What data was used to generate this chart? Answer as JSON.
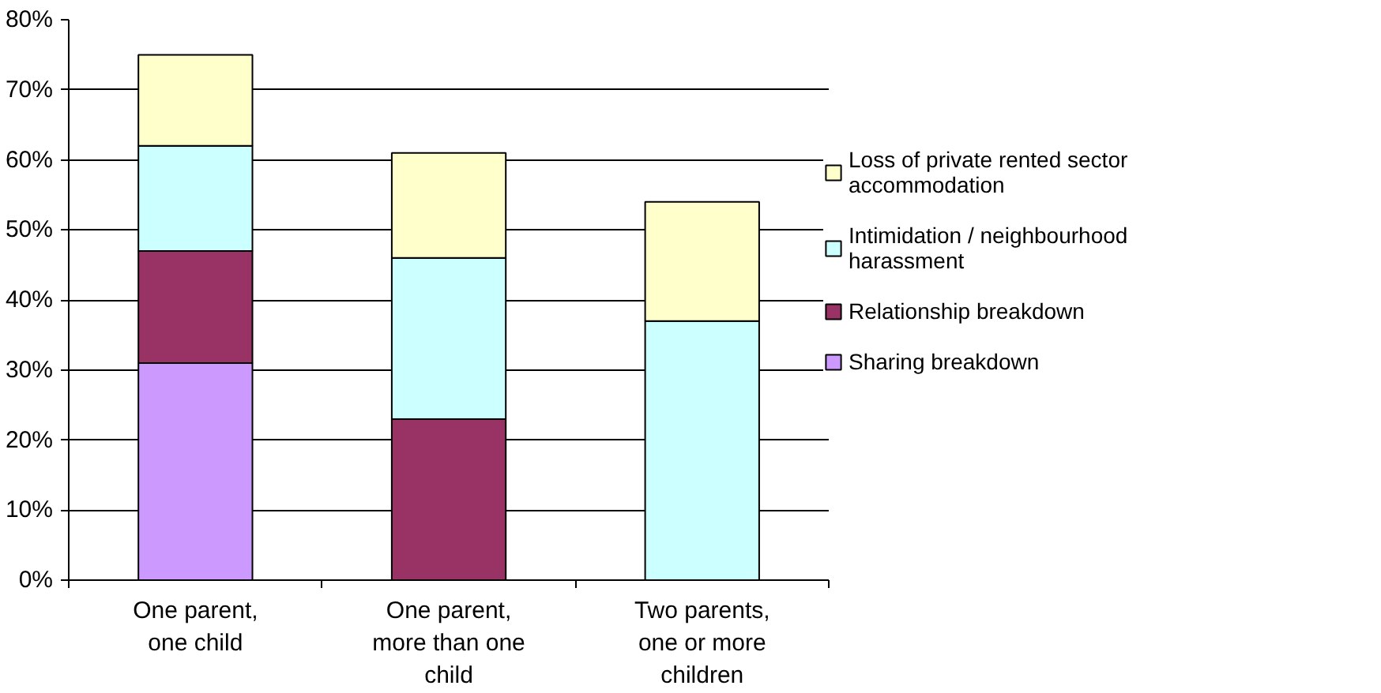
{
  "chart_data": {
    "type": "bar",
    "stacked": true,
    "categories": [
      "One parent, one child",
      "One parent, more than one child",
      "Two parents, one or more children"
    ],
    "series": [
      {
        "name": "Sharing breakdown",
        "color": "#cc99ff",
        "values": [
          31,
          null,
          null
        ]
      },
      {
        "name": "Relationship breakdown",
        "color": "#993366",
        "values": [
          16,
          23,
          null
        ]
      },
      {
        "name": "Intimidation / neighbourhood harassment",
        "color": "#ccffff",
        "values": [
          15,
          23,
          37
        ]
      },
      {
        "name": "Loss of private rented sector accommodation",
        "color": "#ffffcc",
        "values": [
          13,
          15,
          17
        ]
      }
    ],
    "ylim": [
      0,
      80
    ],
    "yticks": [
      {
        "value": 0,
        "label": "0%"
      },
      {
        "value": 10,
        "label": "10%"
      },
      {
        "value": 20,
        "label": "20%"
      },
      {
        "value": 30,
        "label": "30%"
      },
      {
        "value": 40,
        "label": "40%"
      },
      {
        "value": 50,
        "label": "50%"
      },
      {
        "value": 60,
        "label": "60%"
      },
      {
        "value": 70,
        "label": "70%"
      },
      {
        "value": 80,
        "label": "80%"
      }
    ],
    "grid": "y",
    "legend": "right"
  }
}
